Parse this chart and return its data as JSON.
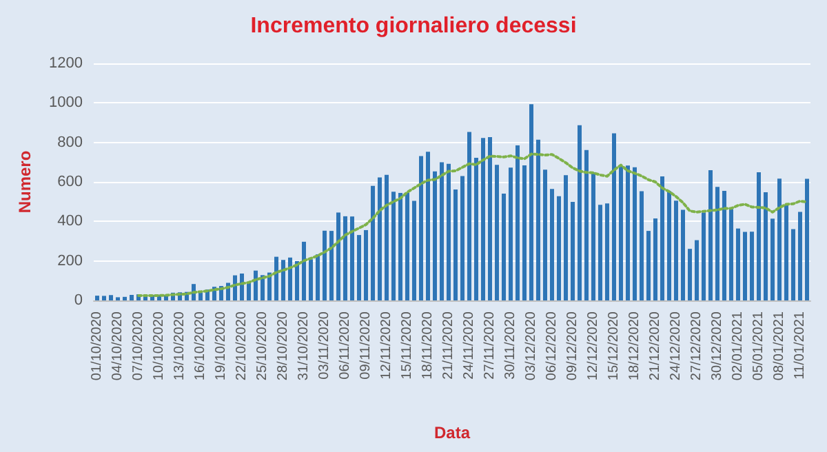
{
  "chart_data": {
    "type": "bar",
    "title": "Incremento giornaliero decessi",
    "xlabel": "Data",
    "ylabel": "Numero",
    "categories": [
      "01/10/2020",
      null,
      null,
      "04/10/2020",
      null,
      null,
      "07/10/2020",
      null,
      null,
      "10/10/2020",
      null,
      null,
      "13/10/2020",
      null,
      null,
      "16/10/2020",
      null,
      null,
      "19/10/2020",
      null,
      null,
      "22/10/2020",
      null,
      null,
      "25/10/2020",
      null,
      null,
      "28/10/2020",
      null,
      null,
      "31/10/2020",
      null,
      null,
      "03/11/2020",
      null,
      null,
      "06/11/2020",
      null,
      null,
      "09/11/2020",
      null,
      null,
      "12/11/2020",
      null,
      null,
      "15/11/2020",
      null,
      null,
      "18/11/2020",
      null,
      null,
      "21/11/2020",
      null,
      null,
      "24/11/2020",
      null,
      null,
      "27/11/2020",
      null,
      null,
      "30/11/2020",
      null,
      null,
      "03/12/2020",
      null,
      null,
      "06/12/2020",
      null,
      null,
      "09/12/2020",
      null,
      null,
      "12/12/2020",
      null,
      null,
      "15/12/2020",
      null,
      null,
      "18/12/2020",
      null,
      null,
      "21/12/2020",
      null,
      null,
      "24/12/2020",
      null,
      null,
      "27/12/2020",
      null,
      null,
      "30/12/2020",
      null,
      null,
      "02/01/2021",
      null,
      null,
      "05/01/2021",
      null,
      null,
      "08/01/2021",
      null,
      null,
      "11/01/2021",
      null
    ],
    "series": [
      {
        "color": "#2e75b6",
        "values": [
          24,
          23,
          27,
          16,
          18,
          28,
          31,
          22,
          28,
          29,
          26,
          39,
          41,
          43,
          83,
          47,
          55,
          69,
          73,
          89,
          127,
          136,
          91,
          151,
          128,
          141,
          221,
          205,
          217,
          199,
          297,
          208,
          233,
          353,
          352,
          445,
          426,
          425,
          331,
          356,
          580,
          623,
          636,
          550,
          544,
          546,
          504,
          731,
          753,
          653,
          699,
          692,
          562,
          630,
          853,
          722,
          822,
          827,
          686,
          541,
          672,
          785,
          684,
          993,
          814,
          662,
          564,
          528,
          634,
          499,
          887,
          761,
          649,
          484,
          491,
          846,
          680,
          683,
          674,
          553,
          352,
          415,
          628,
          553,
          505,
          459,
          261,
          305,
          445,
          659,
          575,
          555,
          462,
          364,
          347,
          348,
          649,
          548,
          414,
          617,
          483,
          361,
          448,
          616
        ]
      },
      {
        "type": "line",
        "color": "#7fb24a",
        "line_style": "dotted",
        "marker": "none",
        "values": [
          null,
          null,
          null,
          null,
          null,
          null,
          24,
          24,
          24,
          25,
          26,
          29,
          31,
          33,
          41,
          44,
          48,
          54,
          59,
          66,
          78,
          85,
          91,
          105,
          114,
          123,
          142,
          153,
          165,
          180,
          201,
          213,
          226,
          245,
          266,
          298,
          331,
          349,
          366,
          384,
          416,
          455,
          482,
          500,
          517,
          548,
          569,
          591,
          609,
          612,
          633,
          654,
          656,
          674,
          692,
          687,
          711,
          730,
          729,
          726,
          732,
          722,
          717,
          741,
          739,
          736,
          739,
          719,
          697,
          671,
          655,
          648,
          646,
          635,
          629,
          660,
          685,
          656,
          644,
          630,
          611,
          600,
          569,
          551,
          526,
          495,
          453,
          447,
          451,
          455,
          458,
          466,
          466,
          481,
          487,
          473,
          471,
          468,
          447,
          470,
          487,
          489,
          503,
          498
        ]
      }
    ],
    "ylim": [
      0,
      1200
    ],
    "yticks": [
      0,
      200,
      400,
      600,
      800,
      1000,
      1200
    ],
    "grid": "y"
  }
}
